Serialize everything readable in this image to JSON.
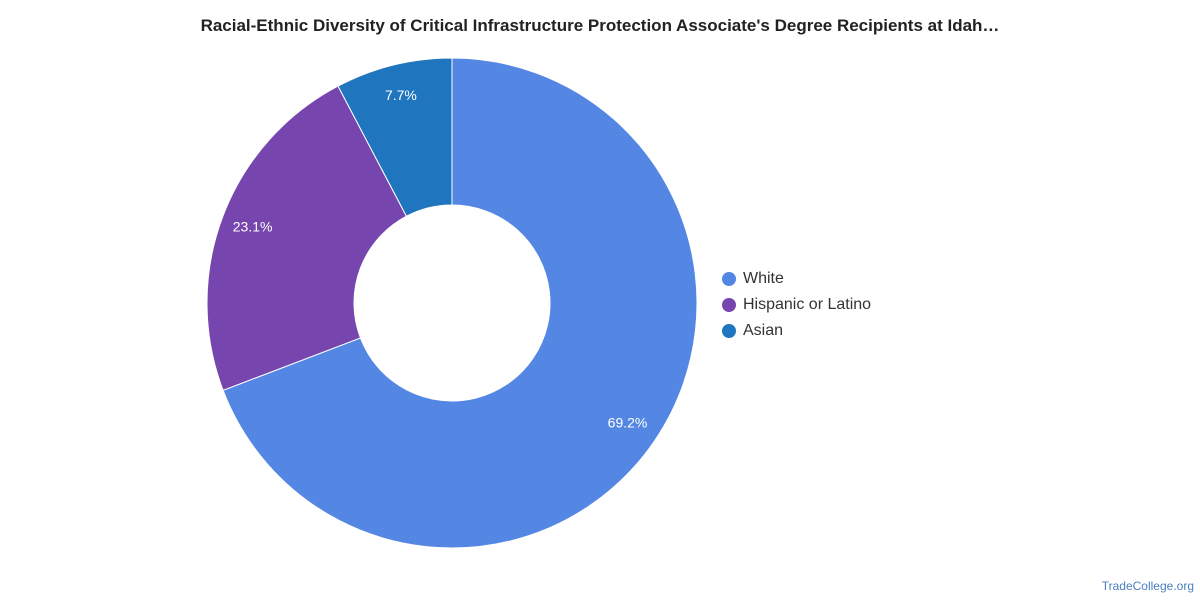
{
  "chart_data": {
    "type": "pie",
    "title": "Racial-Ethnic Diversity of Critical Infrastructure Protection Associate's Degree Recipients at Idah…",
    "donut": true,
    "legend_position": "right",
    "slices": [
      {
        "label": "White",
        "value": 69.2,
        "value_label": "69.2%",
        "color": "#5486e4"
      },
      {
        "label": "Hispanic or Latino",
        "value": 23.1,
        "value_label": "23.1%",
        "color": "#7646ae"
      },
      {
        "label": "Asian",
        "value": 7.7,
        "value_label": "7.7%",
        "color": "#1f75be"
      }
    ]
  },
  "watermark": "TradeCollege.org"
}
